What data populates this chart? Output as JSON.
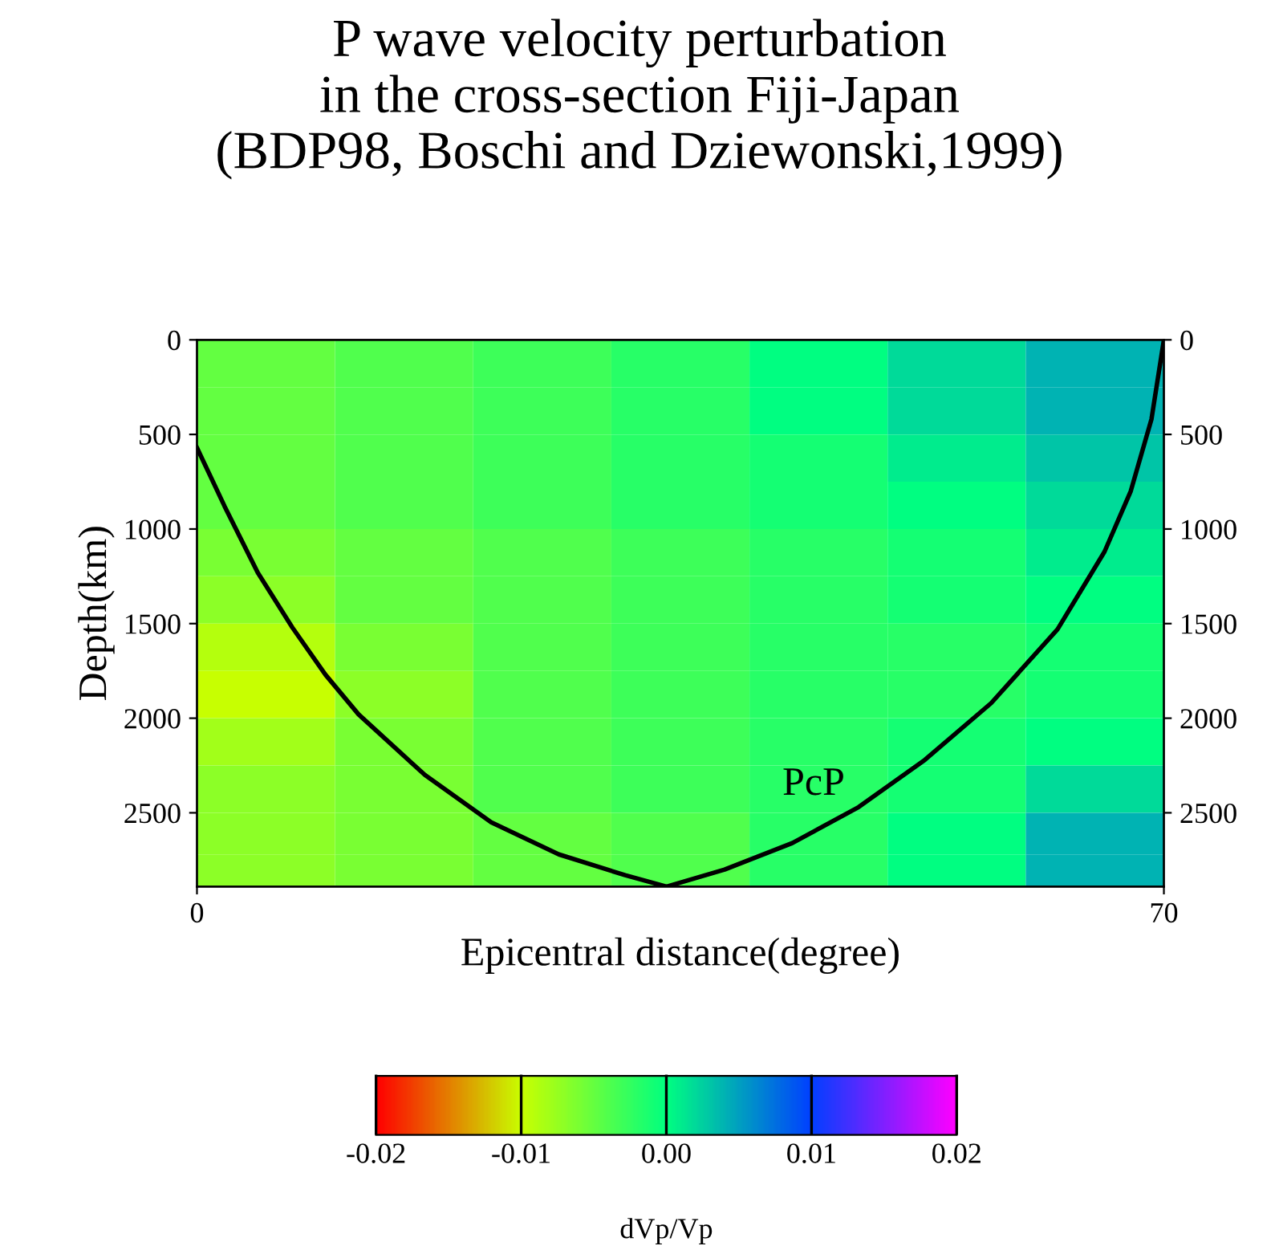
{
  "chart_data": {
    "type": "heatmap",
    "title": "P wave velocity perturbation\nin the cross-section Fiji-Japan\n(BDP98, Boschi and Dziewonski,1999)",
    "xlabel": "Epicentral distance(degree)",
    "ylabel": "Depth(km)",
    "clabel": "dVp/Vp",
    "x": [
      5,
      15,
      25,
      35,
      45,
      55,
      65
    ],
    "y": [
      125,
      375,
      625,
      875,
      1125,
      1375,
      1625,
      1875,
      2125,
      2375,
      2625,
      2820
    ],
    "cells": [
      [
        -0.005,
        -0.004,
        -0.003,
        -0.002,
        0.0,
        0.002,
        0.004
      ],
      [
        -0.005,
        -0.004,
        -0.003,
        -0.002,
        0.0,
        0.002,
        0.004
      ],
      [
        -0.005,
        -0.004,
        -0.003,
        -0.002,
        -0.001,
        0.001,
        0.003
      ],
      [
        -0.005,
        -0.004,
        -0.003,
        -0.002,
        -0.001,
        0.0,
        0.002
      ],
      [
        -0.006,
        -0.005,
        -0.004,
        -0.003,
        -0.002,
        -0.001,
        0.001
      ],
      [
        -0.007,
        -0.005,
        -0.004,
        -0.003,
        -0.002,
        -0.001,
        0.0
      ],
      [
        -0.009,
        -0.006,
        -0.004,
        -0.003,
        -0.002,
        -0.002,
        -0.001
      ],
      [
        -0.01,
        -0.007,
        -0.004,
        -0.003,
        -0.002,
        -0.002,
        -0.001
      ],
      [
        -0.008,
        -0.006,
        -0.004,
        -0.003,
        -0.002,
        -0.001,
        0.0
      ],
      [
        -0.007,
        -0.006,
        -0.004,
        -0.003,
        -0.002,
        -0.001,
        0.002
      ],
      [
        -0.007,
        -0.006,
        -0.005,
        -0.004,
        -0.002,
        0.0,
        0.004
      ],
      [
        -0.007,
        -0.006,
        -0.005,
        -0.004,
        -0.002,
        0.0,
        0.004
      ]
    ],
    "clim": [
      -0.02,
      0.02
    ],
    "cticks": [
      {
        "value": -0.02,
        "label": "-0.02"
      },
      {
        "value": -0.01,
        "label": "-0.01"
      },
      {
        "value": 0.0,
        "label": "0.00"
      },
      {
        "value": 0.01,
        "label": "0.01"
      },
      {
        "value": 0.02,
        "label": "0.02"
      }
    ],
    "xlim": [
      0,
      70
    ],
    "xticks": [
      0,
      70
    ],
    "ylim": [
      2890,
      0
    ],
    "yticks": [
      0,
      500,
      1000,
      1500,
      2000,
      2500
    ],
    "y2lim": [
      2890,
      0
    ],
    "y2ticks": [
      0,
      500,
      1000,
      1500,
      2000,
      2500
    ],
    "series": [
      {
        "type": "line",
        "name": "PcP",
        "color": "#000000",
        "x": [
          0,
          2.0,
          4.4,
          6.9,
          9.3,
          11.7,
          16.5,
          21.3,
          26.2,
          31.0,
          34.0,
          38.2,
          43.1,
          47.9,
          52.7,
          57.5,
          62.3,
          65.7,
          67.6,
          69.1,
          70
        ],
        "values": [
          570,
          880,
          1230,
          1520,
          1770,
          1980,
          2300,
          2550,
          2720,
          2830,
          2890,
          2800,
          2660,
          2470,
          2220,
          1920,
          1530,
          1120,
          800,
          420,
          0
        ]
      }
    ],
    "grid": false,
    "legend": false
  }
}
